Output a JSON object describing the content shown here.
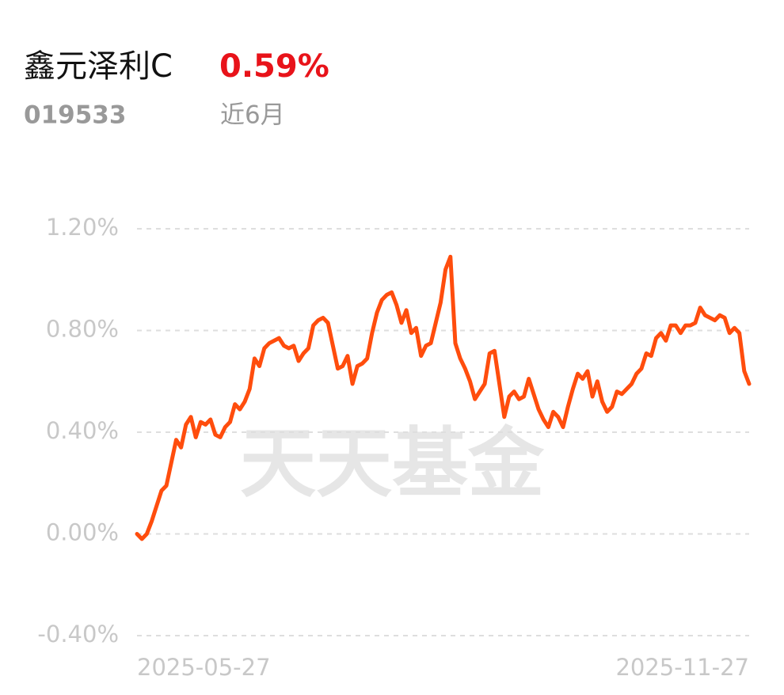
{
  "header": {
    "name": "鑫元泽利C",
    "return": "0.59%",
    "code": "019533",
    "period": "近6月"
  },
  "watermark": "天天基金",
  "chart_data": {
    "type": "line",
    "categories": [
      "2025-05-27",
      null,
      null,
      null,
      null,
      null,
      null,
      null,
      null,
      null,
      null,
      null,
      null,
      null,
      null,
      null,
      null,
      null,
      null,
      null,
      null,
      null,
      null,
      null,
      null,
      null,
      null,
      null,
      null,
      null,
      null,
      null,
      null,
      null,
      null,
      null,
      null,
      null,
      null,
      null,
      null,
      null,
      null,
      null,
      null,
      null,
      null,
      null,
      null,
      null,
      null,
      null,
      null,
      null,
      null,
      null,
      null,
      null,
      null,
      null,
      null,
      null,
      null,
      null,
      null,
      null,
      null,
      null,
      null,
      null,
      null,
      null,
      null,
      null,
      null,
      null,
      null,
      null,
      null,
      null,
      null,
      null,
      null,
      null,
      null,
      null,
      null,
      null,
      null,
      null,
      null,
      null,
      null,
      null,
      null,
      null,
      null,
      null,
      null,
      null,
      null,
      null,
      null,
      null,
      null,
      null,
      null,
      null,
      null,
      null,
      null,
      null,
      null,
      null,
      null,
      null,
      null,
      null,
      null,
      null,
      null,
      null,
      null,
      null,
      null,
      "2025-11-27"
    ],
    "series": [
      {
        "color": "#ff4d0d",
        "values": [
          0.0,
          -0.02,
          0.0,
          0.05,
          0.11,
          0.17,
          0.19,
          0.28,
          0.37,
          0.34,
          0.43,
          0.46,
          0.38,
          0.44,
          0.43,
          0.45,
          0.39,
          0.38,
          0.42,
          0.44,
          0.51,
          0.49,
          0.52,
          0.57,
          0.69,
          0.66,
          0.73,
          0.75,
          0.76,
          0.77,
          0.74,
          0.73,
          0.74,
          0.68,
          0.71,
          0.73,
          0.82,
          0.84,
          0.85,
          0.83,
          0.74,
          0.65,
          0.66,
          0.7,
          0.59,
          0.66,
          0.67,
          0.69,
          0.79,
          0.87,
          0.92,
          0.94,
          0.95,
          0.9,
          0.83,
          0.88,
          0.79,
          0.81,
          0.7,
          0.74,
          0.75,
          0.83,
          0.91,
          1.04,
          1.09,
          0.75,
          0.69,
          0.65,
          0.6,
          0.53,
          0.56,
          0.59,
          0.71,
          0.72,
          0.59,
          0.46,
          0.54,
          0.56,
          0.53,
          0.54,
          0.61,
          0.55,
          0.49,
          0.45,
          0.42,
          0.48,
          0.46,
          0.42,
          0.5,
          0.57,
          0.63,
          0.61,
          0.64,
          0.54,
          0.6,
          0.52,
          0.48,
          0.5,
          0.56,
          0.55,
          0.57,
          0.59,
          0.63,
          0.65,
          0.71,
          0.7,
          0.77,
          0.79,
          0.76,
          0.82,
          0.82,
          0.79,
          0.82,
          0.82,
          0.83,
          0.89,
          0.86,
          0.85,
          0.84,
          0.86,
          0.85,
          0.79,
          0.81,
          0.79,
          0.64,
          0.59
        ]
      }
    ],
    "ylim": [
      -0.4,
      1.2
    ],
    "yticks": [
      {
        "value": -0.4,
        "label": "-0.40%"
      },
      {
        "value": 0,
        "label": "0.00%"
      },
      {
        "value": 0.4,
        "label": "0.40%"
      },
      {
        "value": 0.8,
        "label": "0.80%"
      },
      {
        "value": 1.2,
        "label": "1.20%"
      }
    ],
    "grid": true
  }
}
